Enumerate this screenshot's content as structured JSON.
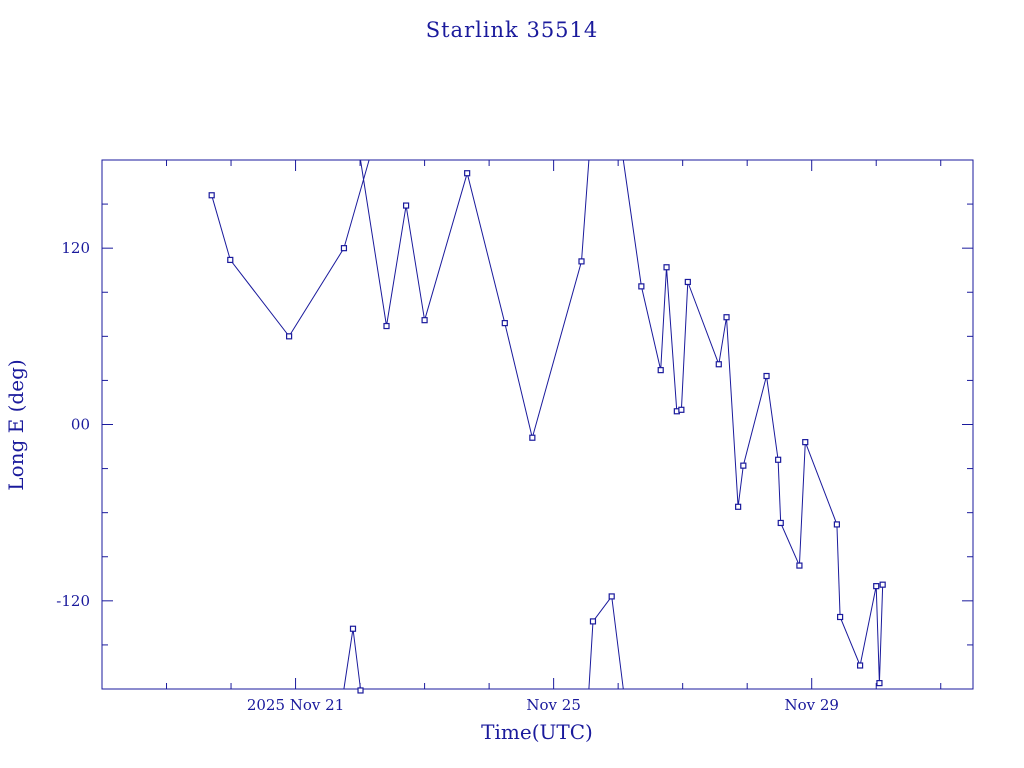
{
  "chart_data": {
    "type": "line",
    "title": "Starlink 35514",
    "xlabel": "Time(UTC)",
    "ylabel": "Long E (deg)",
    "x_unit": "days",
    "xlim": [
      "2025-11-18T00:00",
      "2025-12-01T12:00"
    ],
    "ylim": [
      -180,
      180
    ],
    "x_ticks": [
      {
        "x": "2025-11-21T00:00",
        "label": "2025 Nov 21"
      },
      {
        "x": "2025-11-25T00:00",
        "label": "Nov 25"
      },
      {
        "x": "2025-11-29T00:00",
        "label": "Nov 29"
      }
    ],
    "y_ticks": [
      {
        "y": 120,
        "label": "120"
      },
      {
        "y": 0,
        "label": "00"
      },
      {
        "y": -120,
        "label": "-120"
      }
    ],
    "color": "#1a1a9c",
    "grid": false,
    "points": [
      {
        "x": "2025-11-19T16:48",
        "y": 156
      },
      {
        "x": "2025-11-19T23:43",
        "y": 112
      },
      {
        "x": "2025-11-20T21:36",
        "y": 60
      },
      {
        "x": "2025-11-21T18:00",
        "y": 120
      },
      {
        "x": "2025-11-22T03:22",
        "y": 182,
        "wrap": "out"
      },
      {
        "x": "2025-11-21T18:00",
        "y": -182,
        "wrap": "in"
      },
      {
        "x": "2025-11-21T21:22",
        "y": -139
      },
      {
        "x": "2025-11-22T00:10",
        "y": -181
      },
      {
        "x": "2025-11-22T00:10",
        "y": 180,
        "wrap": "in"
      },
      {
        "x": "2025-11-22T09:50",
        "y": 67
      },
      {
        "x": "2025-11-22T17:07",
        "y": 149
      },
      {
        "x": "2025-11-23T00:00",
        "y": 71
      },
      {
        "x": "2025-11-23T15:50",
        "y": 171
      },
      {
        "x": "2025-11-24T05:50",
        "y": 69
      },
      {
        "x": "2025-11-24T16:05",
        "y": -9
      },
      {
        "x": "2025-11-25T10:22",
        "y": 111
      },
      {
        "x": "2025-11-25T13:07",
        "y": 180,
        "wrap": "out"
      },
      {
        "x": "2025-11-25T13:07",
        "y": -180,
        "wrap": "in"
      },
      {
        "x": "2025-11-25T14:38",
        "y": -134
      },
      {
        "x": "2025-11-25T21:36",
        "y": -117
      },
      {
        "x": "2025-11-26T01:55",
        "y": -180,
        "wrap": "out"
      },
      {
        "x": "2025-11-26T01:55",
        "y": 180,
        "wrap": "in"
      },
      {
        "x": "2025-11-26T08:38",
        "y": 94
      },
      {
        "x": "2025-11-26T15:50",
        "y": 37
      },
      {
        "x": "2025-11-26T18:00",
        "y": 107
      },
      {
        "x": "2025-11-26T21:50",
        "y": 9
      },
      {
        "x": "2025-11-26T23:31",
        "y": 10
      },
      {
        "x": "2025-11-27T01:55",
        "y": 97
      },
      {
        "x": "2025-11-27T13:26",
        "y": 41
      },
      {
        "x": "2025-11-27T16:19",
        "y": 73
      },
      {
        "x": "2025-11-27T20:38",
        "y": -56
      },
      {
        "x": "2025-11-27T22:34",
        "y": -28
      },
      {
        "x": "2025-11-28T07:12",
        "y": 33
      },
      {
        "x": "2025-11-28T11:31",
        "y": -24
      },
      {
        "x": "2025-11-28T12:29",
        "y": -67
      },
      {
        "x": "2025-11-28T19:26",
        "y": -96
      },
      {
        "x": "2025-11-28T21:36",
        "y": -12
      },
      {
        "x": "2025-11-29T09:22",
        "y": -68
      },
      {
        "x": "2025-11-29T10:34",
        "y": -131
      },
      {
        "x": "2025-11-29T18:00",
        "y": -164
      },
      {
        "x": "2025-11-30T00:00",
        "y": -110
      },
      {
        "x": "2025-11-30T01:12",
        "y": -176
      },
      {
        "x": "2025-11-30T02:24",
        "y": -109
      }
    ]
  }
}
